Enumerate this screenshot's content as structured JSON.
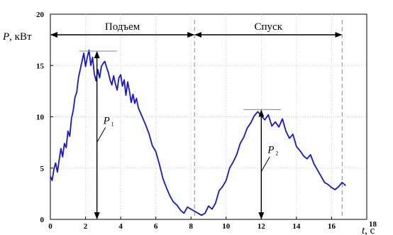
{
  "chart_data": {
    "type": "line",
    "ylabel_var": "P",
    "ylabel_unit": ", кВт",
    "xlabel_var": "t",
    "xlabel_unit": ", с",
    "xlim": [
      0,
      18
    ],
    "ylim": [
      0,
      20
    ],
    "xticks": [
      0,
      2,
      4,
      6,
      8,
      10,
      12,
      14,
      16,
      18
    ],
    "yticks": [
      0,
      5,
      10,
      15,
      20
    ],
    "grid": true,
    "series": [
      {
        "color": "#1414dc",
        "x": [
          0,
          0.1,
          0.2,
          0.3,
          0.4,
          0.5,
          0.6,
          0.7,
          0.8,
          0.9,
          1.0,
          1.1,
          1.2,
          1.3,
          1.4,
          1.5,
          1.6,
          1.7,
          1.8,
          1.9,
          2.0,
          2.1,
          2.2,
          2.3,
          2.4,
          2.5,
          2.6,
          2.7,
          2.8,
          2.9,
          3.0,
          3.1,
          3.2,
          3.3,
          3.4,
          3.5,
          3.6,
          3.7,
          3.8,
          3.9,
          4.0,
          4.1,
          4.2,
          4.3,
          4.4,
          4.5,
          4.6,
          4.7,
          4.8,
          4.9,
          5.0,
          5.2,
          5.4,
          5.6,
          5.8,
          6.0,
          6.2,
          6.4,
          6.6,
          6.8,
          7.0,
          7.2,
          7.4,
          7.6,
          7.8,
          8.0,
          8.2,
          8.4,
          8.6,
          8.8,
          9.0,
          9.2,
          9.4,
          9.6,
          9.8,
          10.0,
          10.2,
          10.4,
          10.6,
          10.8,
          11.0,
          11.2,
          11.4,
          11.6,
          11.8,
          12.0,
          12.2,
          12.4,
          12.6,
          12.8,
          13.0,
          13.2,
          13.4,
          13.6,
          13.8,
          14.0,
          14.2,
          14.4,
          14.6,
          14.8,
          15.0,
          15.2,
          15.4,
          15.6,
          15.8,
          16.0,
          16.2,
          16.4,
          16.6,
          16.8
        ],
        "y": [
          4.2,
          3.8,
          4.9,
          5.5,
          4.6,
          5.8,
          6.9,
          6.1,
          7.4,
          7.0,
          8.6,
          8.1,
          9.8,
          10.6,
          11.9,
          12.4,
          13.8,
          14.6,
          15.4,
          16.2,
          14.9,
          15.8,
          16.5,
          15.0,
          15.8,
          14.2,
          13.5,
          14.6,
          13.8,
          14.9,
          15.2,
          15.4,
          14.8,
          14.3,
          13.6,
          13.1,
          14.0,
          13.2,
          12.6,
          13.8,
          14.1,
          13.0,
          13.6,
          12.1,
          13.4,
          12.5,
          11.4,
          12.2,
          11.3,
          11.8,
          10.9,
          10.1,
          9.3,
          8.4,
          7.2,
          6.6,
          5.4,
          4.0,
          3.1,
          2.3,
          1.7,
          1.4,
          0.9,
          0.6,
          1.2,
          1.0,
          0.8,
          0.6,
          0.4,
          0.6,
          1.3,
          1.0,
          1.6,
          2.8,
          3.2,
          3.8,
          5.0,
          5.6,
          6.3,
          7.4,
          8.0,
          8.9,
          9.4,
          10.1,
          10.5,
          10.1,
          9.7,
          10.2,
          9.1,
          9.5,
          9.0,
          9.8,
          8.6,
          7.9,
          8.3,
          7.1,
          6.7,
          6.2,
          5.9,
          6.3,
          5.4,
          4.8,
          4.2,
          3.6,
          3.4,
          3.1,
          2.9,
          3.2,
          3.6,
          3.3
        ]
      }
    ],
    "segments": [
      {
        "label": "Подъем",
        "x0": 0,
        "x1": 8.2
      },
      {
        "label": "Спуск",
        "x0": 8.2,
        "x1": 16.6
      }
    ],
    "annotations": [
      {
        "var": "P",
        "sub": "1",
        "x": 2.65,
        "y_top": 16.4,
        "y_bottom": 0
      },
      {
        "var": "P",
        "sub": "2",
        "x": 12.0,
        "y_top": 10.7,
        "y_bottom": 0
      }
    ]
  }
}
